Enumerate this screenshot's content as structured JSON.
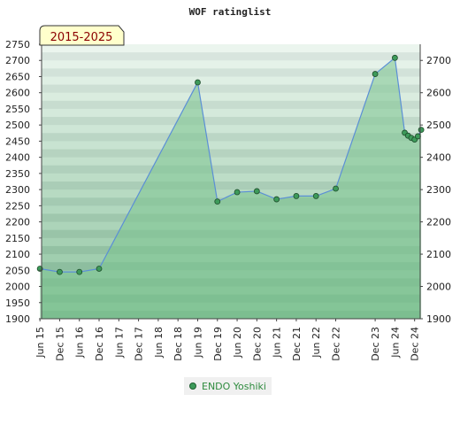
{
  "chart_data": {
    "type": "area",
    "title": "WOF ratinglist",
    "badge": "2015-2025",
    "x": [
      "2015-06",
      "2015-12",
      "2016-06",
      "2016-12",
      "2019-06",
      "2019-12",
      "2020-06",
      "2020-12",
      "2021-06",
      "2021-12",
      "2022-06",
      "2022-12",
      "2023-12",
      "2024-06",
      "2024-09",
      "2024-10",
      "2024-11",
      "2024-12",
      "2025-01",
      "2025-02"
    ],
    "x_ticks": [
      "Jun 15",
      "Dec 15",
      "Jun 16",
      "Dec 16",
      "Jun 17",
      "Dec 17",
      "Jun 18",
      "Dec 18",
      "Jun 19",
      "Dec 19",
      "Jun 20",
      "Dec 20",
      "Jun 21",
      "Dec 21",
      "Jun 22",
      "Dec 22",
      "Dec 23",
      "Jun 24",
      "Dec 24"
    ],
    "series": [
      {
        "name": "ENDO Yoshiki",
        "values": [
          2055,
          2045,
          2045,
          2055,
          2632,
          2263,
          2292,
          2295,
          2270,
          2280,
          2280,
          2303,
          2658,
          2708,
          2476,
          2467,
          2460,
          2455,
          2465,
          2485
        ]
      }
    ],
    "ylim": [
      1900,
      2750
    ],
    "y_ticks_left": [
      1900,
      1950,
      2000,
      2050,
      2100,
      2150,
      2200,
      2250,
      2300,
      2350,
      2400,
      2450,
      2500,
      2550,
      2600,
      2650,
      2700,
      2750
    ],
    "y_ticks_right": [
      1900,
      2000,
      2100,
      2200,
      2300,
      2400,
      2500,
      2600,
      2700
    ],
    "colors": {
      "fill": "#7cc48f",
      "line": "#5b8fd6",
      "marker": "#3d9a5a",
      "badge_bg": "#ffffcc"
    },
    "legend_position": "bottom"
  }
}
